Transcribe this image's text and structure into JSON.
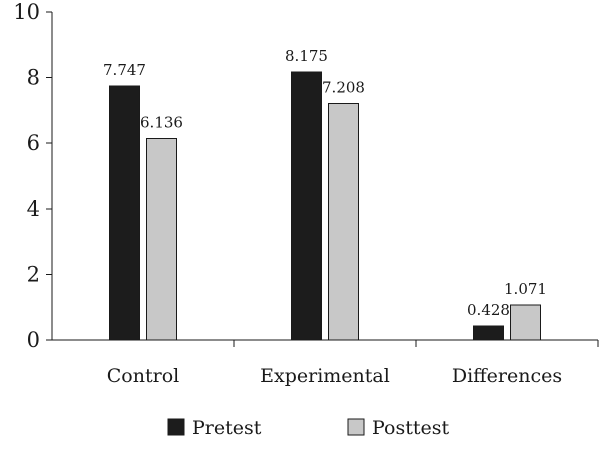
{
  "chart_data": {
    "type": "bar",
    "title": "",
    "xlabel": "",
    "ylabel": "",
    "categories": [
      "Control",
      "Experimental",
      "Differences"
    ],
    "ylim": [
      0,
      10
    ],
    "yticks": [
      "0",
      "2",
      "4",
      "6",
      "8",
      "10"
    ],
    "grid": false,
    "legend_position": "bottom-center",
    "series": [
      {
        "name": "Pretest",
        "color": "#1c1c1c",
        "values": [
          7.747,
          8.175,
          0.428
        ],
        "labels": [
          "7.747",
          "8.175",
          "0.428"
        ]
      },
      {
        "name": "Posttest",
        "color": "#c8c8c8",
        "values": [
          6.136,
          7.208,
          1.071
        ],
        "labels": [
          "6.136",
          "7.208",
          "1.071"
        ]
      }
    ]
  }
}
